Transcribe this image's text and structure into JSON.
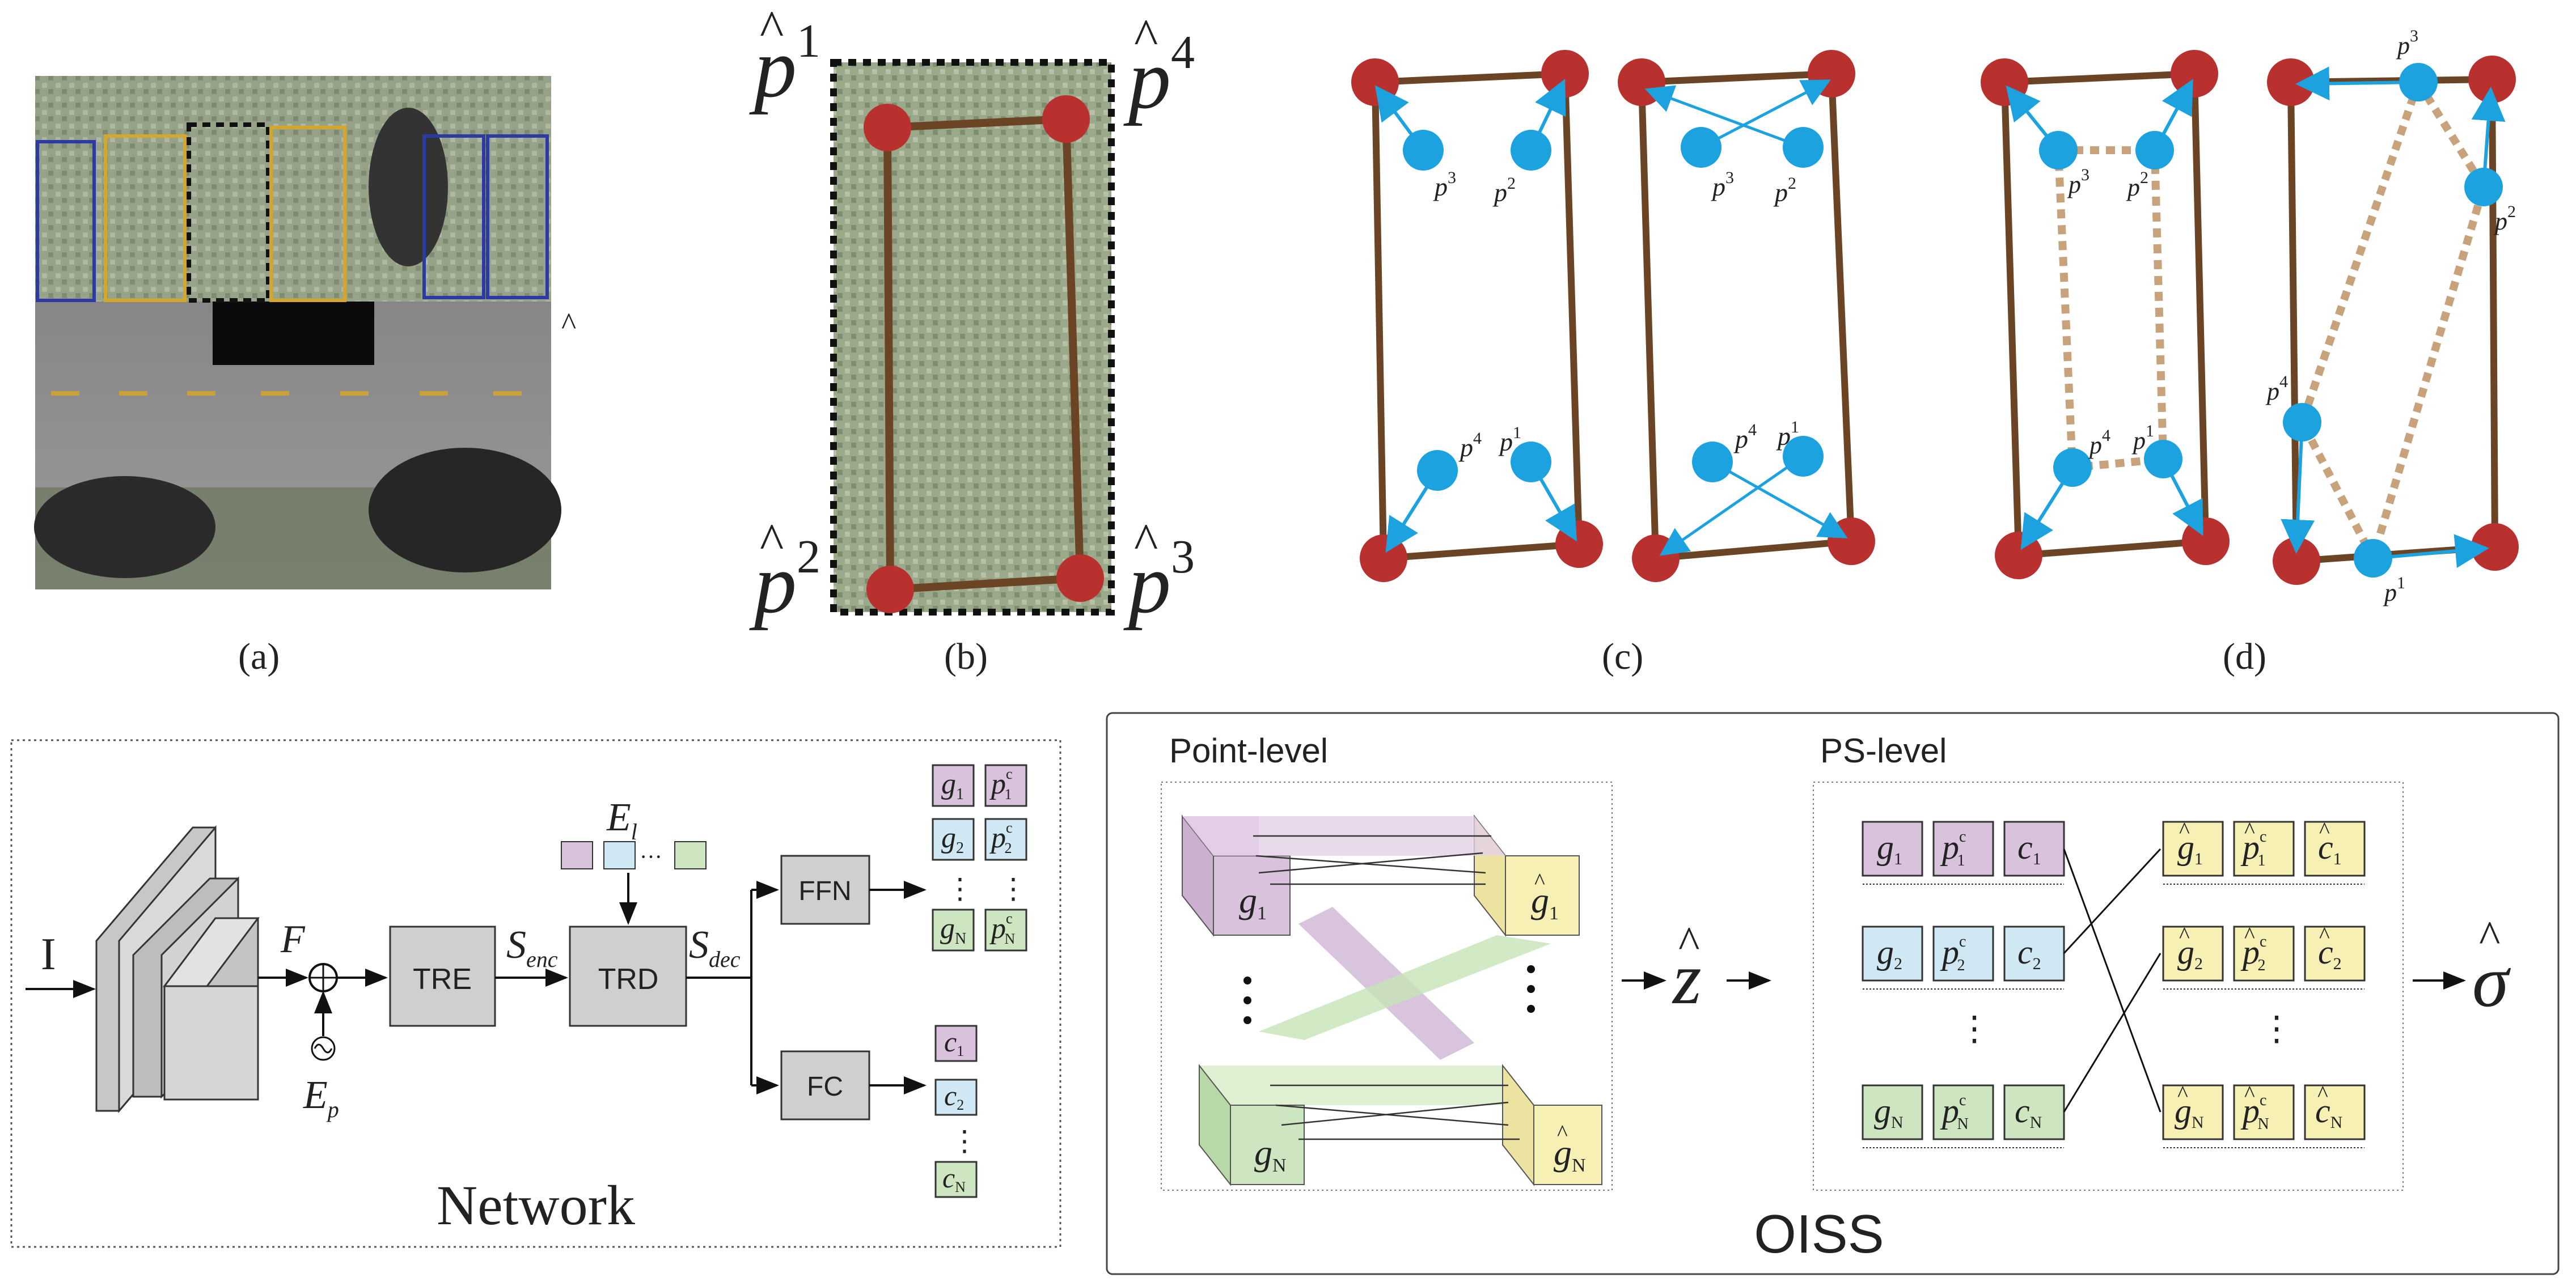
{
  "panels": {
    "a": {
      "caption": "(a)"
    },
    "b": {
      "caption": "(b)",
      "corner_labels": [
        "p",
        "p",
        "p",
        "p"
      ],
      "corner_indices": [
        "1",
        "4",
        "2",
        "3"
      ]
    },
    "c": {
      "caption": "(c)",
      "point_labels": [
        "p",
        "p",
        "p",
        "p"
      ],
      "point_indices": [
        "3",
        "2",
        "4",
        "1"
      ]
    },
    "d": {
      "caption": "(d)",
      "point_labels": [
        "p",
        "p",
        "p",
        "p"
      ],
      "point_indices": [
        "3",
        "2",
        "4",
        "1"
      ]
    }
  },
  "hat_symbol": "^",
  "network": {
    "title": "Network",
    "input_label": "I",
    "feature_label": "F",
    "pos_embed_label": "E",
    "pos_embed_sub": "p",
    "learned_embed_label": "E",
    "learned_embed_sub": "l",
    "ellipsis": "···",
    "tre_label": "TRE",
    "trd_label": "TRD",
    "s_enc": "S",
    "s_enc_sub": "enc",
    "s_dec": "S",
    "s_dec_sub": "dec",
    "ffn_label": "FFN",
    "fc_label": "FC",
    "g_rows": [
      {
        "g": "g",
        "gi": "1",
        "p": "p",
        "pc": "c",
        "pi": "1"
      },
      {
        "g": "g",
        "gi": "2",
        "p": "p",
        "pc": "c",
        "pi": "2"
      },
      {
        "g": "g",
        "gi": "N",
        "p": "p",
        "pc": "c",
        "pi": "N"
      }
    ],
    "c_rows": [
      {
        "c": "c",
        "ci": "1"
      },
      {
        "c": "c",
        "ci": "2"
      },
      {
        "c": "c",
        "ci": "N"
      }
    ],
    "vdots": "⋮"
  },
  "oiss": {
    "title": "OISS",
    "point_level_title": "Point-level",
    "ps_level_title": "PS-level",
    "g1": "g",
    "g1_i": "1",
    "gN": "g",
    "gN_i": "N",
    "ghat1": "g",
    "ghat1_i": "1",
    "ghatN": "g",
    "ghatN_i": "N",
    "z_label": "z",
    "sigma_label": "σ",
    "left_rows": [
      {
        "g": "g",
        "i": "1",
        "p": "p",
        "pc": "c",
        "c": "c"
      },
      {
        "g": "g",
        "i": "2",
        "p": "p",
        "pc": "c",
        "c": "c"
      },
      {
        "g": "g",
        "i": "N",
        "p": "p",
        "pc": "c",
        "c": "c"
      }
    ],
    "right_rows": [
      {
        "g": "g",
        "i": "1",
        "p": "p",
        "pc": "c",
        "c": "c"
      },
      {
        "g": "g",
        "i": "2",
        "p": "p",
        "pc": "c",
        "c": "c"
      },
      {
        "g": "g",
        "i": "N",
        "p": "p",
        "pc": "c",
        "c": "c"
      }
    ],
    "vdots": "⋮"
  },
  "colors": {
    "slot_outer": "#8b5a2b",
    "corner_red": "#b8312f",
    "point_blue": "#1ca3df",
    "dashed_tan": "#c8a27a",
    "purple": "#d9c3dc",
    "blue": "#cfe8f3",
    "green": "#cde6c1",
    "yellow": "#f7f0b4",
    "gray_box": "#cfcfcf"
  }
}
